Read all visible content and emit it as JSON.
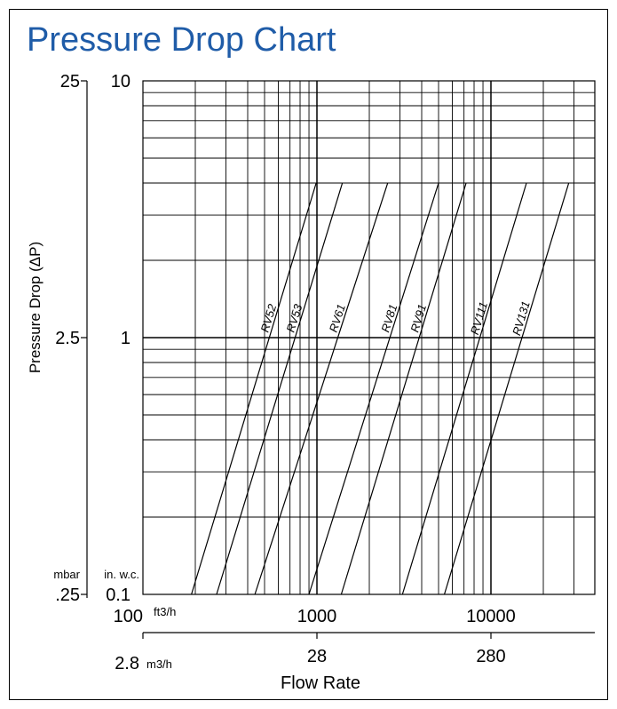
{
  "title": "Pressure Drop Chart",
  "ylabel": "Pressure Drop (ΔP)",
  "xlabel": "Flow Rate",
  "colors": {
    "title": "#1f5ca8",
    "ink": "#000000"
  },
  "y_inwc_ticks": [
    "10",
    "1",
    "0.1"
  ],
  "y_inwc_unit": "in. w.c.",
  "y_mbar_ticks": [
    "25",
    "2.5",
    ".25"
  ],
  "y_mbar_unit": "mbar",
  "x_ft3h_ticks": [
    "100",
    "1000",
    "10000"
  ],
  "x_ft3h_unit": "ft3/h",
  "x_m3h_ticks": [
    "2.8",
    "28",
    "280"
  ],
  "x_m3h_unit": "m3/h",
  "chart_data": {
    "type": "line",
    "title": "Pressure Drop Chart",
    "xlabel": "Flow Rate",
    "ylabel": "Pressure Drop (ΔP)",
    "x_scale": "log",
    "y_scale": "log",
    "xlim": [
      100,
      30000
    ],
    "ylim": [
      0.1,
      10
    ],
    "grid": true,
    "series": [
      {
        "name": "RV52",
        "points": [
          [
            190,
            0.1
          ],
          [
            990,
            4
          ]
        ]
      },
      {
        "name": "RV53",
        "points": [
          [
            265,
            0.1
          ],
          [
            1400,
            4
          ]
        ]
      },
      {
        "name": "RV61",
        "points": [
          [
            440,
            0.1
          ],
          [
            2550,
            4
          ]
        ]
      },
      {
        "name": "RV81",
        "points": [
          [
            900,
            0.1
          ],
          [
            5000,
            4
          ]
        ]
      },
      {
        "name": "RV91",
        "points": [
          [
            1380,
            0.1
          ],
          [
            7200,
            4
          ]
        ]
      },
      {
        "name": "RV111",
        "points": [
          [
            3100,
            0.1
          ],
          [
            16000,
            4
          ]
        ]
      },
      {
        "name": "RV131",
        "points": [
          [
            5400,
            0.1
          ],
          [
            28000,
            4
          ]
        ]
      }
    ]
  }
}
